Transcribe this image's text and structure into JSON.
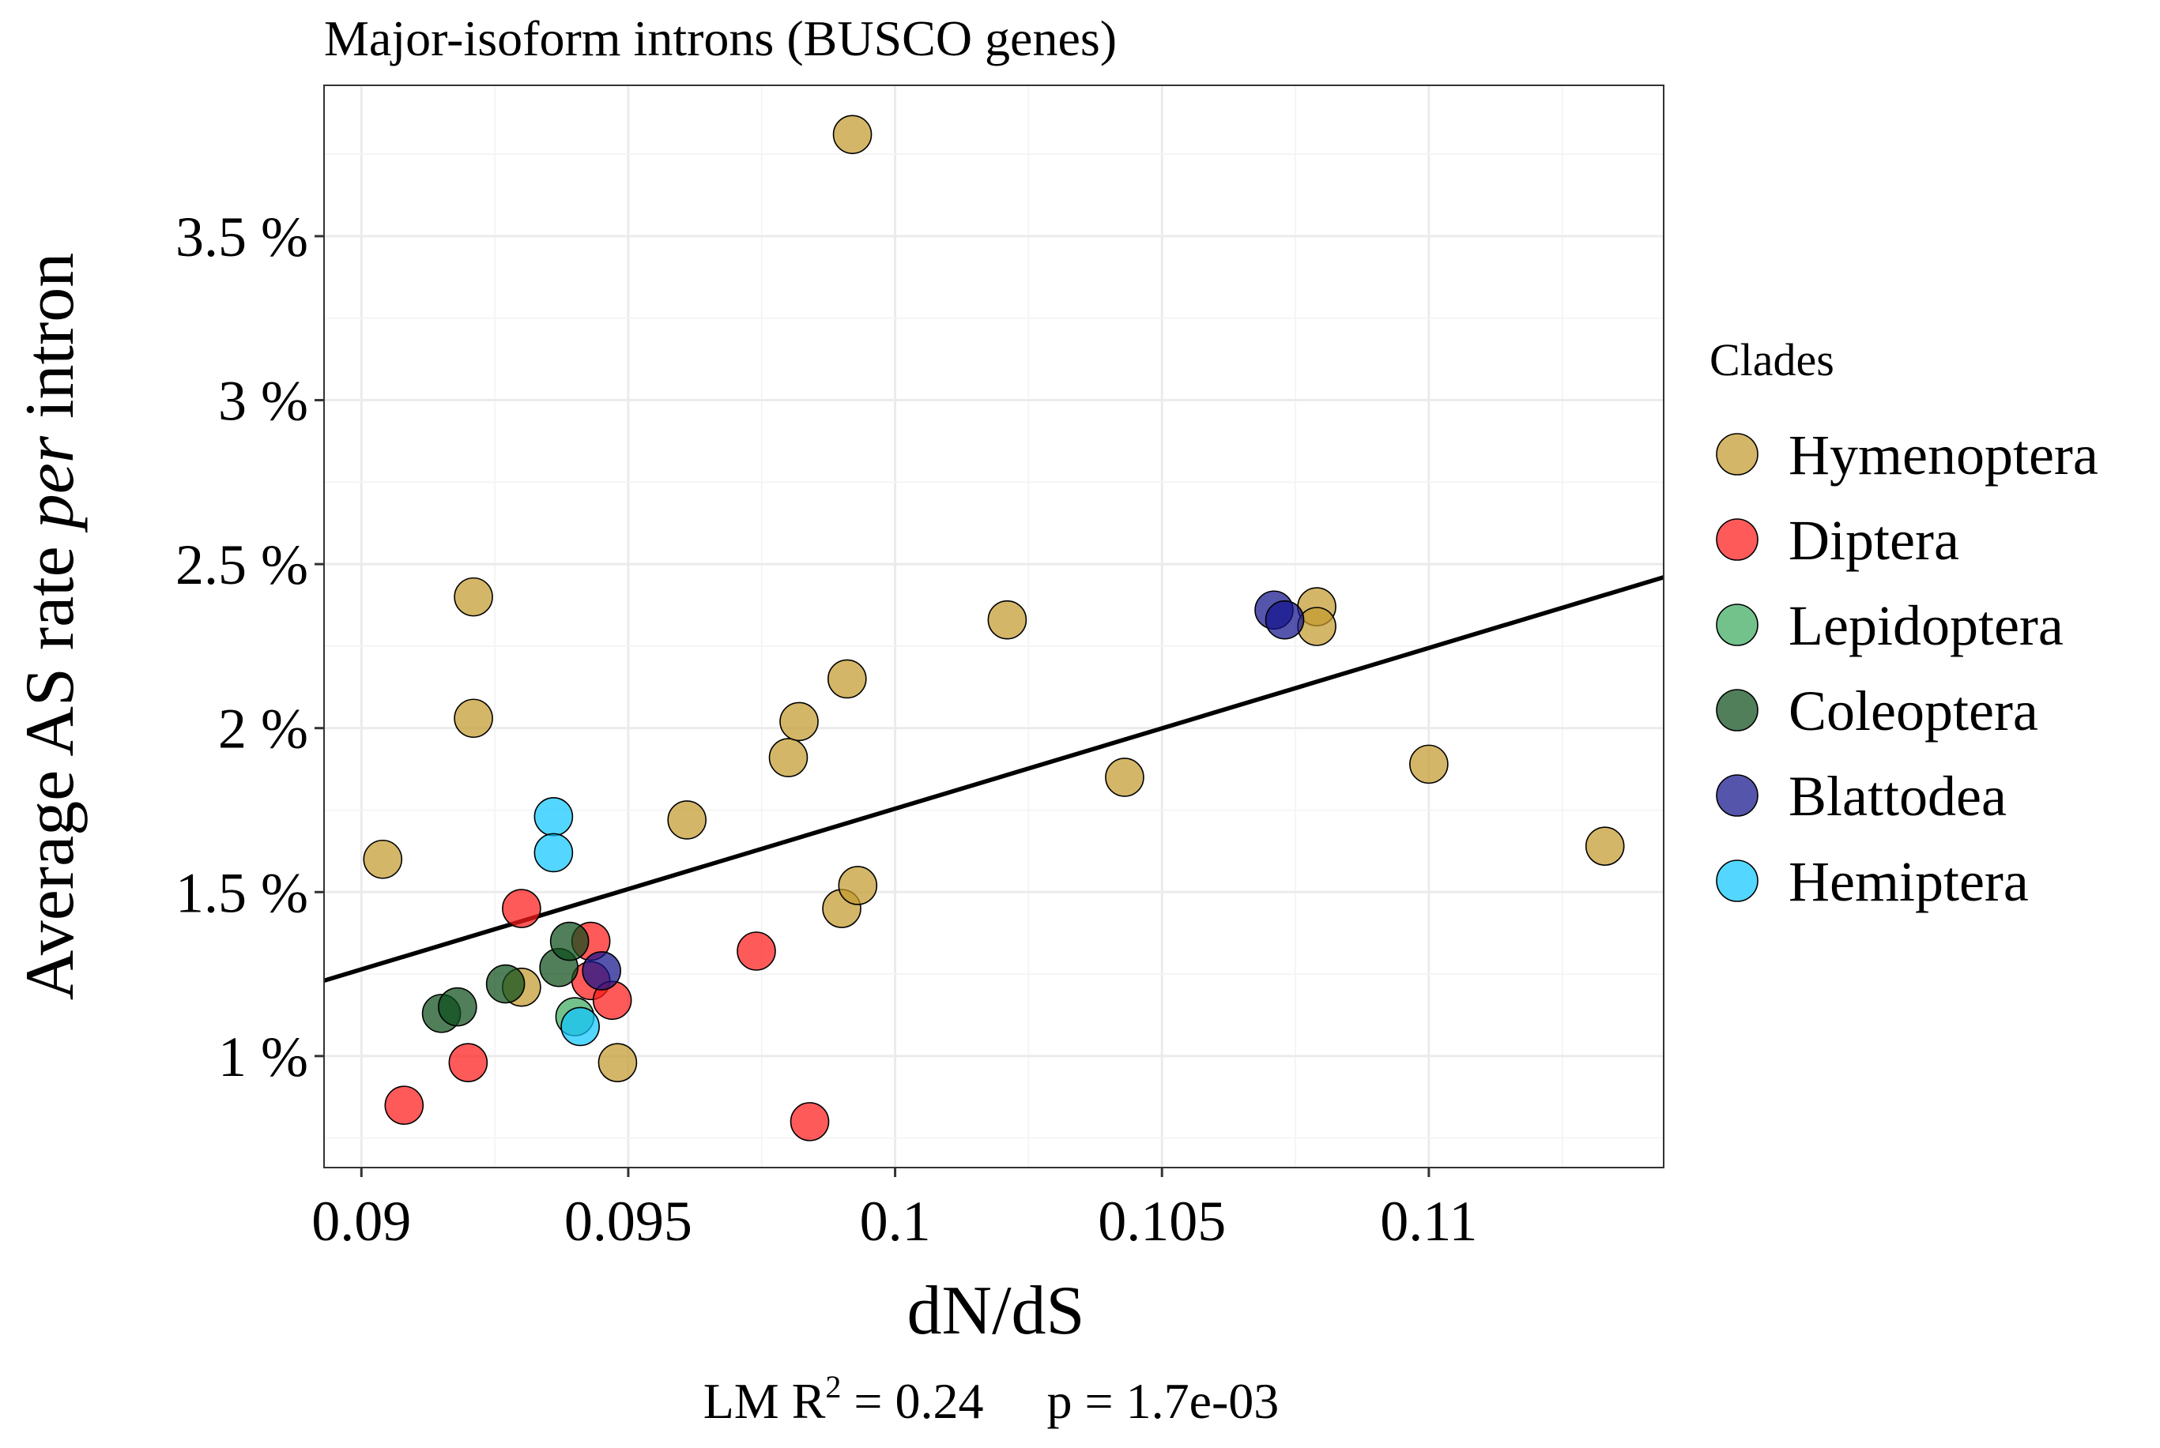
{
  "chart_data": {
    "type": "scatter",
    "title": "Major-isoform introns (BUSCO genes)",
    "xlabel": "dN/dS",
    "ylabel_parts": [
      "Average AS rate ",
      "per",
      " intron"
    ],
    "xlim": [
      0.0893,
      0.1144
    ],
    "ylim": [
      0.66,
      3.96
    ],
    "x_ticks": [
      0.09,
      0.095,
      0.1,
      0.105,
      0.11
    ],
    "x_tick_labels": [
      "0.09",
      "0.095",
      "0.1",
      "0.105",
      "0.11"
    ],
    "y_ticks": [
      1.0,
      1.5,
      2.0,
      2.5,
      3.0,
      3.5
    ],
    "y_tick_labels": [
      "1 %",
      "1.5 %",
      "2 %",
      "2.5 %",
      "3 %",
      "3.5 %"
    ],
    "grid": true,
    "legend_title": "Clades",
    "legend_position": "right",
    "fit_line": {
      "x": [
        0.0893,
        0.1144
      ],
      "y": [
        1.23,
        2.46
      ]
    },
    "stats": {
      "prefix": "LM R",
      "superscript": "2",
      "r2_text": " = 0.24",
      "p_text": "p = 1.7e-03"
    },
    "series": [
      {
        "name": "Hymenoptera",
        "color": "#C49A2E",
        "points": [
          [
            0.0904,
            1.6
          ],
          [
            0.0921,
            2.4
          ],
          [
            0.0921,
            2.03
          ],
          [
            0.093,
            1.21
          ],
          [
            0.0948,
            0.98
          ],
          [
            0.0961,
            1.72
          ],
          [
            0.098,
            1.91
          ],
          [
            0.0982,
            2.02
          ],
          [
            0.099,
            1.45
          ],
          [
            0.0991,
            2.15
          ],
          [
            0.0992,
            3.81
          ],
          [
            0.0993,
            1.52
          ],
          [
            0.1021,
            2.33
          ],
          [
            0.1043,
            1.85
          ],
          [
            0.1079,
            2.37
          ],
          [
            0.1079,
            2.31
          ],
          [
            0.11,
            1.89
          ],
          [
            0.1133,
            1.64
          ]
        ]
      },
      {
        "name": "Diptera",
        "color": "#FF1A1A",
        "points": [
          [
            0.0908,
            0.85
          ],
          [
            0.092,
            0.98
          ],
          [
            0.093,
            1.45
          ],
          [
            0.0943,
            1.35
          ],
          [
            0.0943,
            1.23
          ],
          [
            0.0947,
            1.17
          ],
          [
            0.0974,
            1.32
          ],
          [
            0.0984,
            0.8
          ]
        ]
      },
      {
        "name": "Lepidoptera",
        "color": "#3DAA60",
        "points": [
          [
            0.094,
            1.12
          ]
        ]
      },
      {
        "name": "Coleoptera",
        "color": "#0D4D1A",
        "points": [
          [
            0.0915,
            1.13
          ],
          [
            0.0918,
            1.15
          ],
          [
            0.0927,
            1.22
          ],
          [
            0.0937,
            1.27
          ],
          [
            0.0939,
            1.35
          ]
        ]
      },
      {
        "name": "Blattodea",
        "color": "#13148C",
        "points": [
          [
            0.0945,
            1.26
          ],
          [
            0.1071,
            2.36
          ],
          [
            0.1073,
            2.33
          ]
        ]
      },
      {
        "name": "Hemiptera",
        "color": "#11C6FF",
        "points": [
          [
            0.0936,
            1.73
          ],
          [
            0.0936,
            1.62
          ],
          [
            0.0941,
            1.09
          ]
        ]
      }
    ]
  }
}
